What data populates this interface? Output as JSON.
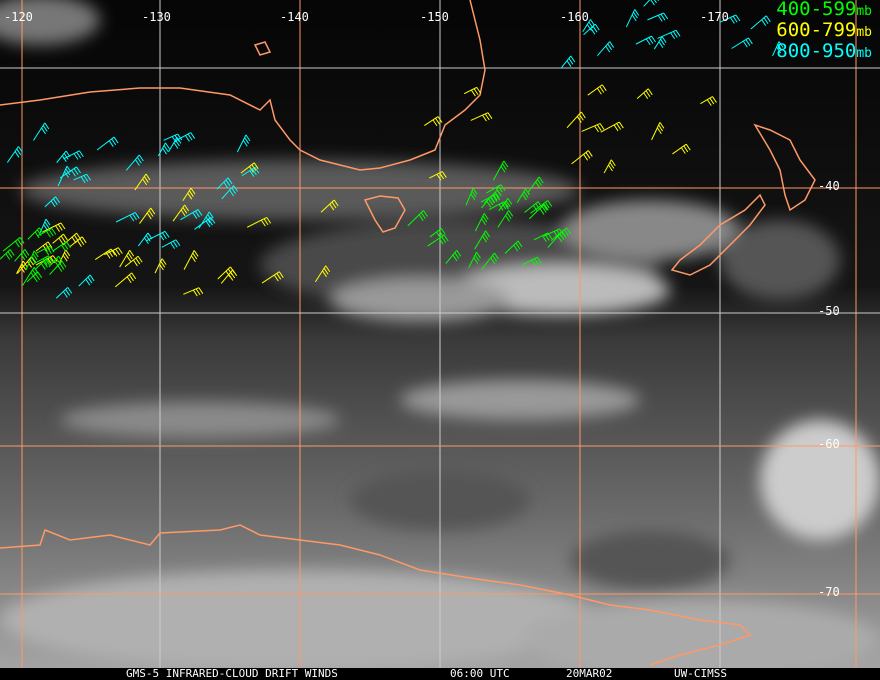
{
  "map": {
    "longitude_labels": [
      "-120",
      "-130",
      "-140",
      "-150",
      "-160",
      "-170"
    ],
    "latitude_labels": [
      "-40",
      "-50",
      "-60",
      "-70"
    ],
    "grid_colors": {
      "orange": "#ff9966",
      "white": "#cccccc"
    },
    "coastline_color": "#ff9966"
  },
  "legend": [
    {
      "range": "400-599",
      "unit": "mb",
      "color": "#00ff00"
    },
    {
      "range": "600-799",
      "unit": "mb",
      "color": "#ffff00"
    },
    {
      "range": "800-950",
      "unit": "mb",
      "color": "#00ffff"
    }
  ],
  "caption": {
    "title": "GMS-5 INFRARED-CLOUD DRIFT WINDS",
    "time": "06:00 UTC",
    "date": "20MAR02",
    "source": "UW-CIMSS"
  }
}
